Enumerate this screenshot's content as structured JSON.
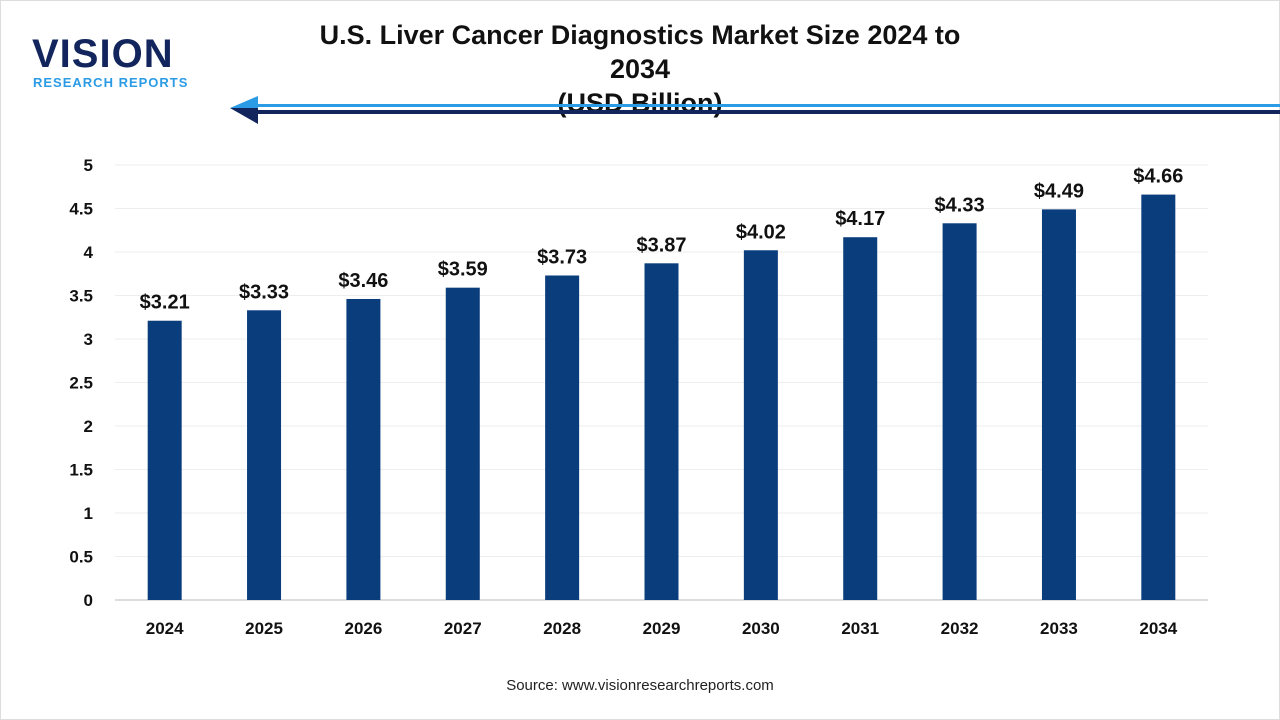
{
  "logo": {
    "main": "VISION",
    "sub": "RESEARCH REPORTS"
  },
  "title_line1": "U.S. Liver Cancer Diagnostics Market Size 2024 to 2034",
  "title_line2": "(USD Billion)",
  "source": "Source: www.visionresearchreports.com",
  "colors": {
    "bar": "#0a3d7c",
    "accent": "#2b9be6",
    "navy": "#12255c"
  },
  "chart_data": {
    "type": "bar",
    "title": "U.S. Liver Cancer Diagnostics Market Size 2024 to 2034 (USD Billion)",
    "categories": [
      "2024",
      "2025",
      "2026",
      "2027",
      "2028",
      "2029",
      "2030",
      "2031",
      "2032",
      "2033",
      "2034"
    ],
    "values": [
      3.21,
      3.33,
      3.46,
      3.59,
      3.73,
      3.87,
      4.02,
      4.17,
      4.33,
      4.49,
      4.66
    ],
    "data_labels": [
      "$3.21",
      "$3.33",
      "$3.46",
      "$3.59",
      "$3.73",
      "$3.87",
      "$4.02",
      "$4.17",
      "$4.33",
      "$4.49",
      "$4.66"
    ],
    "yticks": [
      "0",
      "0.5",
      "1",
      "1.5",
      "2",
      "2.5",
      "3",
      "3.5",
      "4",
      "4.5",
      "5"
    ],
    "ylim": [
      0,
      5
    ],
    "grid": true,
    "xlabel": "",
    "ylabel": ""
  }
}
